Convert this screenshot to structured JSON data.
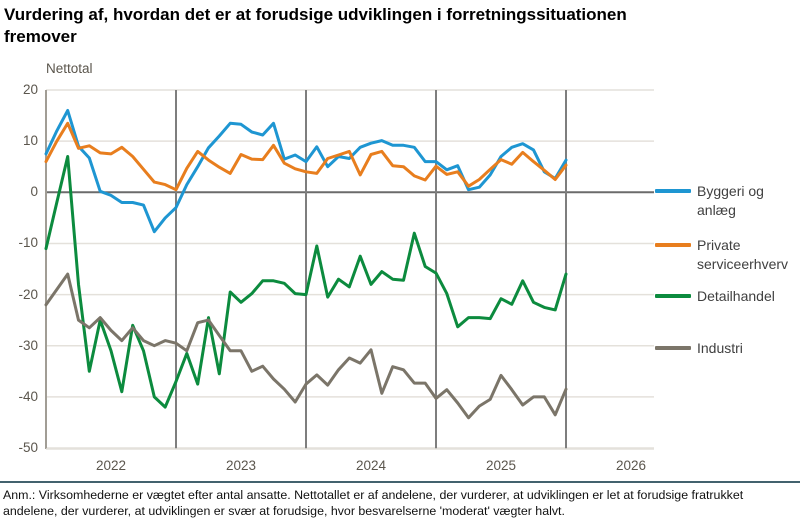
{
  "title": "Vurdering af, hvordan det er at forudsige udviklingen i forretningssituationen fremover",
  "y_axis_title": "Nettotal",
  "footnote": "Anm.: Virksomhederne er vægtet efter antal ansatte. Nettotallet er af andelene, der vurderer, at udviklingen er let at forudsige fratrukket andelene, der vurderer, at udviklingen er svær at forudsige, hvor besvarelserne 'moderat' vægter halvt.",
  "colors": {
    "byggeri": "#1e96d2",
    "service": "#e87e1e",
    "detail": "#0c8b3e",
    "industri": "#7b7569",
    "zero_line": "#6b6b6b",
    "year_line": "#7e7e7e",
    "gridline": "#e4e1db",
    "axis_line": "#a19d95",
    "separator": "#43626e"
  },
  "chart_data": {
    "type": "line",
    "title": "Vurdering af, hvordan det er at forudsige udviklingen i forretningssituationen fremover",
    "ylabel": "Nettotal",
    "ylim": [
      -50,
      20
    ],
    "y_ticks": [
      20,
      10,
      0,
      -10,
      -20,
      -30,
      -40,
      -50
    ],
    "x_tick_labels": [
      "2022",
      "2023",
      "2024",
      "2025",
      "2026"
    ],
    "x_start": "2022-01",
    "x_end": "2026-01",
    "frequency": "monthly",
    "grid": "horizontal",
    "legend_position": "right",
    "series": [
      {
        "name": "Byggeri og anlæg",
        "color": "#1e96d2",
        "values": [
          7.5,
          12,
          16,
          9,
          6.7,
          0.2,
          -0.6,
          -2,
          -2,
          -2.5,
          -7.7,
          -5,
          -3,
          1.5,
          5,
          8.7,
          11,
          13.5,
          13.3,
          11.8,
          11.2,
          13.5,
          6.5,
          7.3,
          6,
          8.9,
          5,
          7,
          6.6,
          8.8,
          9.6,
          10.1,
          9.2,
          9.2,
          8.8,
          6,
          6,
          4.4,
          5.2,
          0.5,
          1,
          3.4,
          7,
          8.8,
          9.5,
          8.3,
          4,
          2.7,
          6.3
        ]
      },
      {
        "name": "Private serviceerhverv",
        "color": "#e87e1e",
        "values": [
          6,
          10,
          13.5,
          8.6,
          9.1,
          7.7,
          7.5,
          8.8,
          7,
          4.5,
          2,
          1.5,
          0.5,
          4.7,
          8,
          6.3,
          4.9,
          3.7,
          7.4,
          6.5,
          6.4,
          9.2,
          5.7,
          4.6,
          4,
          3.7,
          6.6,
          7.3,
          8,
          3.4,
          7.4,
          8,
          5.2,
          5,
          3.2,
          2.4,
          5.1,
          3.5,
          4,
          1.2,
          2.5,
          4.5,
          6.4,
          5.5,
          7.8,
          6,
          4.3,
          2.5,
          5.3
        ]
      },
      {
        "name": "Detailhandel",
        "color": "#0c8b3e",
        "values": [
          -11,
          -2,
          7,
          -18,
          -35,
          -25,
          -31,
          -39,
          -26,
          -31,
          -40,
          -42,
          -37,
          -31.5,
          -37.5,
          -24.5,
          -35.5,
          -19.5,
          -21.5,
          -19.8,
          -17.3,
          -17.3,
          -17.8,
          -19.8,
          -20,
          -10.5,
          -20.5,
          -17,
          -18.5,
          -12.5,
          -18,
          -15.5,
          -17,
          -17.2,
          -8,
          -14.5,
          -15.8,
          -19.8,
          -26.3,
          -24.5,
          -24.5,
          -24.7,
          -20.8,
          -21.9,
          -17.3,
          -21.5,
          -22.5,
          -23,
          -16
        ]
      },
      {
        "name": "Industri",
        "color": "#7b7569",
        "values": [
          -22,
          -19,
          -16,
          -25,
          -26.5,
          -24.5,
          -27,
          -29,
          -26.5,
          -29,
          -30,
          -29,
          -29.5,
          -31,
          -25.5,
          -25,
          -28,
          -31,
          -31,
          -35,
          -34,
          -36.5,
          -38.5,
          -41,
          -37.5,
          -35.7,
          -37.7,
          -34.7,
          -32.4,
          -33.4,
          -30.8,
          -39.3,
          -34.1,
          -34.7,
          -37.3,
          -37.3,
          -40.3,
          -38.6,
          -41.2,
          -44.1,
          -41.8,
          -40.5,
          -35.8,
          -38.6,
          -41.6,
          -40,
          -40,
          -43.5,
          -38.5
        ]
      }
    ]
  }
}
